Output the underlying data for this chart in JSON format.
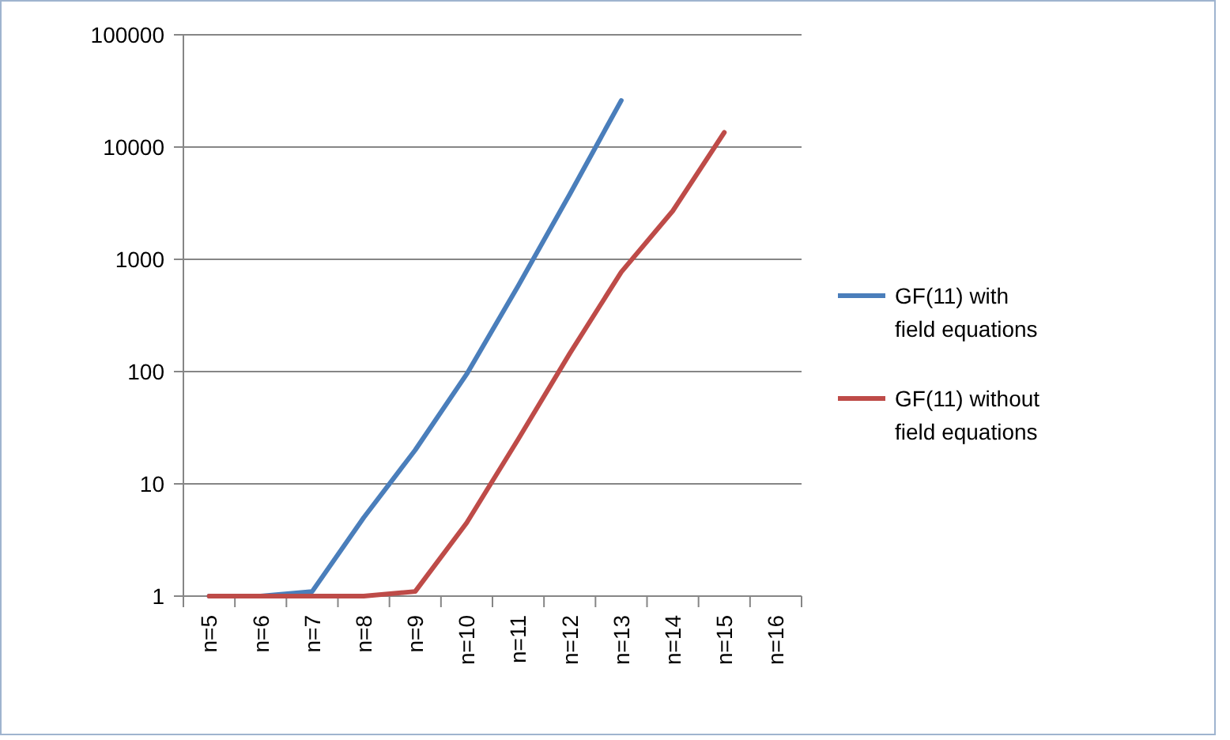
{
  "chart_data": {
    "type": "line",
    "categories": [
      "n=5",
      "n=6",
      "n=7",
      "n=8",
      "n=9",
      "n=10",
      "n=11",
      "n=12",
      "n=13",
      "n=14",
      "n=15",
      "n=16"
    ],
    "series": [
      {
        "name": "GF(11) with field equations",
        "color": "#4a7ebb",
        "values": [
          1,
          1,
          1.1,
          5,
          20,
          95,
          580,
          3800,
          26000,
          null,
          null,
          null
        ]
      },
      {
        "name": "GF(11) without field equations",
        "color": "#be4b48",
        "values": [
          1,
          1,
          1,
          1,
          1.1,
          4.5,
          25,
          145,
          770,
          2700,
          13500,
          null
        ]
      }
    ],
    "log": true,
    "ylim": [
      1,
      100000
    ],
    "yticks": [
      1,
      10,
      100,
      1000,
      10000,
      100000
    ],
    "grid": "y",
    "legend": "right",
    "marker": "none",
    "line_style": "solid"
  }
}
